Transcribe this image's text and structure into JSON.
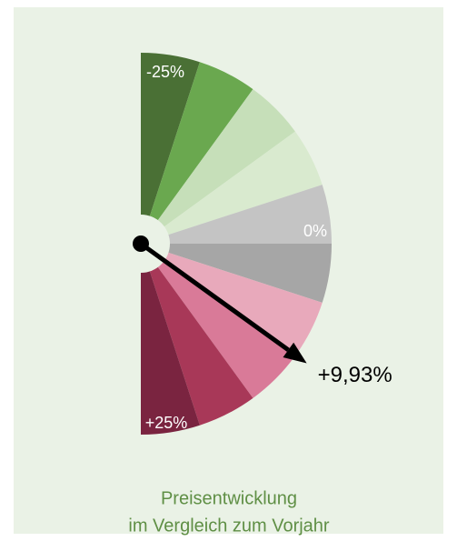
{
  "chart_data": {
    "type": "gauge",
    "ylim": [
      -25,
      25
    ],
    "yticks": [
      {
        "value": -25,
        "label": "-25%"
      },
      {
        "value": 0,
        "label": "0%"
      },
      {
        "value": 25,
        "label": "+25%"
      }
    ],
    "bands": [
      "#4a7035",
      "#6aa84f",
      "#c6dfb9",
      "#d9eacf",
      "#c4c4c4",
      "#a6a6a6",
      "#e8a9bb",
      "#d97a98",
      "#a83858",
      "#7a2440"
    ],
    "value": 9.93,
    "value_label": "+9,93%",
    "caption": [
      "Preisentwicklung",
      "im Vergleich zum Vorjahr"
    ],
    "caption_color": "#5f8f45"
  }
}
